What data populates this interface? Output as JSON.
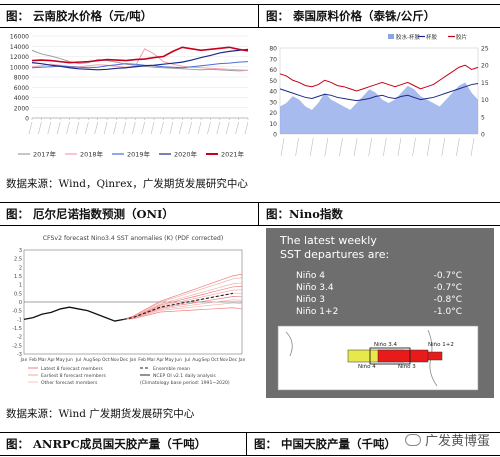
{
  "section1": {
    "left_title": "图：  云南胶水价格（元/吨）",
    "right_title": "图：  泰国原料价格（泰铢/公斤）",
    "source": "数据来源：Wind，Qinrex，广发期货发展研究中心"
  },
  "section2": {
    "left_title": "图：  厄尔尼诺指数预测（ONI）",
    "right_title": "图：Nino指数",
    "source": "数据来源：Wind  广发期货发展研究中心"
  },
  "section3": {
    "left_title": "图：  ANRPC成员国天胶产量（千吨）",
    "right_title": "图：  中国天胶产量（千吨）"
  },
  "watermark": {
    "text": "广发黄博蛋"
  },
  "colors": {
    "y2017": "#9e9e9e",
    "y2018": "#f4a0b4",
    "y2019": "#4a6fd8",
    "y2020": "#1a2a8a",
    "y2021": "#c8001a",
    "cup": "#8aa4e8",
    "field": "#1a2a8a",
    "sheet": "#c8001a",
    "sst_bg": "#6e6e6e",
    "nino_yellow": "#e8e84a",
    "nino_red": "#e81a1a"
  },
  "chart_data": [
    {
      "type": "line",
      "y_ticks": [
        "16000",
        "14000",
        "12000",
        "10000",
        "8000",
        "6000",
        "4000",
        "2000",
        "0"
      ],
      "ylim": [
        0,
        16000
      ],
      "series": [
        {
          "name": "2017年",
          "values": [
            13200,
            12500,
            12100,
            11600,
            11000,
            10600,
            10800,
            11400,
            11200,
            10900,
            10500,
            10300,
            10100,
            9900,
            9800,
            9700,
            9600,
            9500,
            9400,
            9500,
            9400,
            9300,
            9200,
            9300
          ]
        },
        {
          "name": "2018年",
          "values": [
            10000,
            10200,
            10500,
            10300,
            10100,
            10000,
            10200,
            10400,
            10300,
            10100,
            9900,
            10100,
            13500,
            12500,
            11000,
            10500,
            10100,
            9900,
            9800,
            9700,
            9600,
            9500,
            9400,
            9300
          ]
        },
        {
          "name": "2019年",
          "values": [
            9800,
            9900,
            10000,
            10100,
            10000,
            9900,
            9800,
            9900,
            10200,
            10400,
            10600,
            10500,
            10300,
            10200,
            10000,
            9900,
            9800,
            10000,
            10200,
            10400,
            10600,
            10700,
            10900,
            11000
          ]
        },
        {
          "name": "2020年",
          "values": [
            10800,
            10600,
            10300,
            10100,
            9800,
            9600,
            9500,
            9400,
            9500,
            9700,
            9800,
            10000,
            10200,
            10300,
            10500,
            10700,
            10900,
            11300,
            11800,
            12200,
            12700,
            13000,
            13200,
            13400
          ]
        },
        {
          "name": "2021年",
          "values": [
            11200,
            11300,
            11200,
            11000,
            10800,
            10900,
            11000,
            11200,
            11400,
            11300,
            11200,
            11400,
            11500,
            11800,
            12000,
            13000,
            13800,
            13500,
            13200,
            13400,
            13600,
            13800,
            13400,
            13100
          ]
        }
      ]
    },
    {
      "type": "line",
      "y_left_ticks": [
        "80",
        "70",
        "60",
        "50",
        "40",
        "30",
        "20",
        "10",
        "0"
      ],
      "ylim_left": [
        0,
        80
      ],
      "y_right_ticks": [
        "25",
        "20",
        "15",
        "10",
        "5",
        "0"
      ],
      "ylim_right": [
        0,
        25
      ],
      "series": [
        {
          "name": "胶水-杯胶",
          "axis": "right",
          "values": [
            8,
            9,
            11,
            10,
            8,
            7,
            9,
            12,
            10,
            9,
            8,
            7,
            9,
            11,
            13,
            12,
            10,
            9,
            10,
            12,
            14,
            13,
            11,
            10,
            9,
            8,
            10,
            12,
            14,
            15,
            12,
            10
          ]
        },
        {
          "name": "杯胶",
          "values": [
            42,
            40,
            38,
            36,
            34,
            33,
            35,
            37,
            36,
            34,
            33,
            32,
            31,
            32,
            33,
            35,
            36,
            34,
            33,
            35,
            36,
            34,
            32,
            33,
            34,
            36,
            38,
            40,
            42,
            44,
            46,
            47
          ]
        },
        {
          "name": "胶片",
          "values": [
            56,
            54,
            50,
            48,
            45,
            44,
            46,
            50,
            48,
            45,
            44,
            42,
            40,
            42,
            44,
            46,
            48,
            46,
            44,
            46,
            48,
            45,
            42,
            44,
            46,
            50,
            54,
            58,
            62,
            64,
            60,
            62
          ]
        }
      ]
    },
    {
      "type": "line",
      "title": "CFSv2 forecast Nino3.4 SST anomalies (K) (PDF corrected)",
      "y_ticks": [
        "3",
        "2.5",
        "2",
        "1.5",
        "1",
        "0.5",
        "0",
        "-0.5",
        "-1",
        "-1.5",
        "-2",
        "-2.5",
        "-3"
      ],
      "ylim": [
        -3,
        3
      ],
      "months": [
        "Jan",
        "Feb",
        "Mar",
        "Apr",
        "May",
        "Jun",
        "Jul",
        "Aug",
        "Sep",
        "Oct",
        "Nov",
        "Dec",
        "Jan",
        "Feb",
        "Mar",
        "Apr",
        "May",
        "Jun",
        "Jul",
        "Aug",
        "Sep",
        "Oct",
        "Nov",
        "Dec",
        "Jan"
      ],
      "legend": [
        "Latest 8 forecast members",
        "Earliest 8 forecast members",
        "Other forecast members",
        "Ensemble mean",
        "NCEP OI v2.1 daily analysis",
        "(Climatology base period: 1991~2020)"
      ],
      "observed": [
        -1.0,
        -0.9,
        -0.7,
        -0.6,
        -0.4,
        -0.3,
        -0.4,
        -0.5,
        -0.7,
        -0.9,
        -1.1,
        -1.0
      ],
      "ensemble_mean": [
        -1.0,
        -0.9,
        -0.7,
        -0.5,
        -0.3,
        -0.2,
        -0.1,
        0.0,
        0.1,
        0.2,
        0.3,
        0.4,
        0.5
      ]
    },
    {
      "type": "table",
      "title": "The latest weekly SST departures are:",
      "rows": [
        {
          "region": "Niño 4",
          "value": "-0.7°C"
        },
        {
          "region": "Niño 3.4",
          "value": "-0.7°C"
        },
        {
          "region": "Niño 3",
          "value": "-0.8°C"
        },
        {
          "region": "Niño 1+2",
          "value": "-1.0°C"
        }
      ],
      "map_labels": [
        "Niño 4",
        "Niño 3.4",
        "Niño 3",
        "Niño 1+2"
      ]
    }
  ]
}
